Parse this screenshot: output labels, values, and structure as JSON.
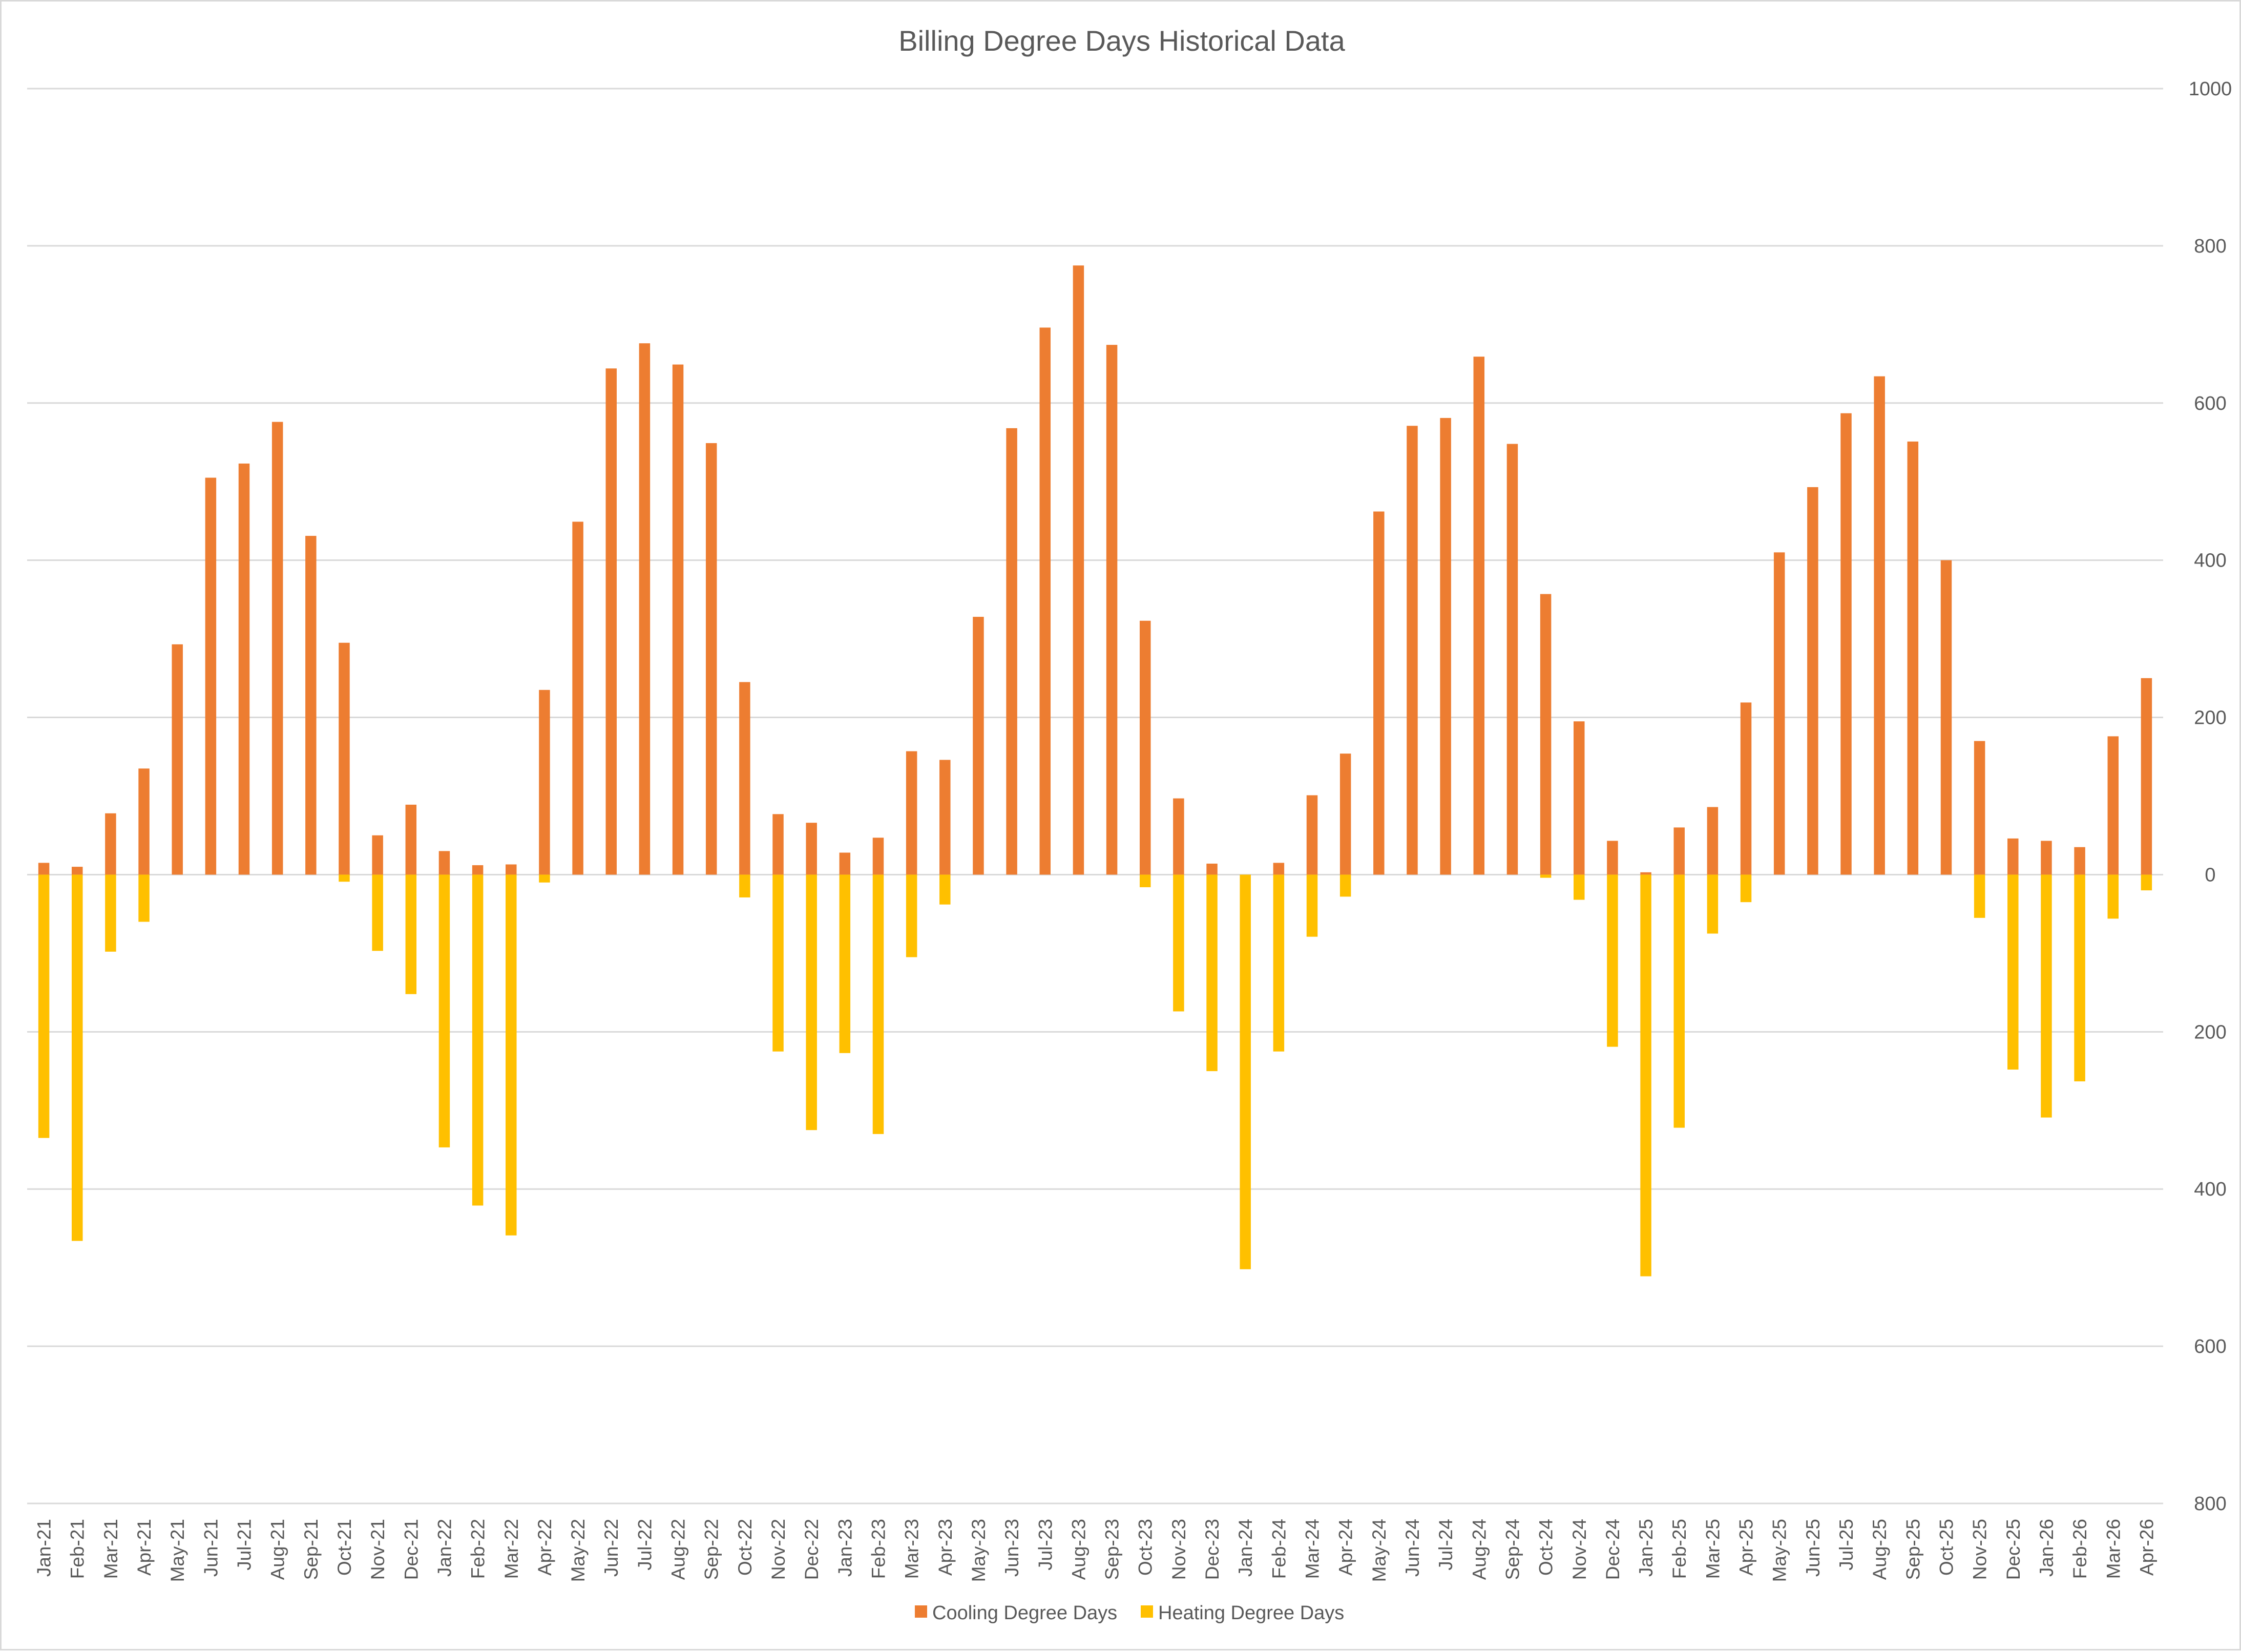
{
  "chart_data": {
    "type": "bar",
    "title": "Billing Degree Days Historical Data",
    "xlabel": "",
    "ylabel": "",
    "ylim": [
      -800,
      1000
    ],
    "y_ticks": [
      1000,
      800,
      600,
      400,
      200,
      0,
      -200,
      -400,
      -600,
      -800
    ],
    "y_tick_labels": [
      "1000",
      "800",
      "600",
      "400",
      "200",
      "0",
      "200",
      "400",
      "600",
      "800"
    ],
    "y_axis_position": "right",
    "grid": true,
    "legend_position": "bottom",
    "categories": [
      "Jan-21",
      "Feb-21",
      "Mar-21",
      "Apr-21",
      "May-21",
      "Jun-21",
      "Jul-21",
      "Aug-21",
      "Sep-21",
      "Oct-21",
      "Nov-21",
      "Dec-21",
      "Jan-22",
      "Feb-22",
      "Mar-22",
      "Apr-22",
      "May-22",
      "Jun-22",
      "Jul-22",
      "Aug-22",
      "Sep-22",
      "Oct-22",
      "Nov-22",
      "Dec-22",
      "Jan-23",
      "Feb-23",
      "Mar-23",
      "Apr-23",
      "May-23",
      "Jun-23",
      "Jul-23",
      "Aug-23",
      "Sep-23",
      "Oct-23",
      "Nov-23",
      "Dec-23",
      "Jan-24",
      "Feb-24",
      "Mar-24",
      "Apr-24",
      "May-24",
      "Jun-24",
      "Jul-24",
      "Aug-24",
      "Sep-24",
      "Oct-24",
      "Nov-24",
      "Dec-24",
      "Jan-25",
      "Feb-25",
      "Mar-25",
      "Apr-25",
      "May-25",
      "Jun-25",
      "Jul-25",
      "Aug-25",
      "Sep-25",
      "Oct-25",
      "Nov-25",
      "Dec-25",
      "Jan-26",
      "Feb-26",
      "Mar-26",
      "Apr-26"
    ],
    "series": [
      {
        "name": "Cooling Degree Days",
        "color": "#ed7d31",
        "values": [
          15,
          10,
          78,
          135,
          293,
          505,
          523,
          576,
          431,
          295,
          50,
          89,
          30,
          12,
          13,
          235,
          449,
          644,
          676,
          649,
          549,
          245,
          77,
          66,
          28,
          47,
          157,
          146,
          328,
          568,
          696,
          775,
          674,
          323,
          97,
          14,
          0,
          15,
          101,
          154,
          462,
          571,
          581,
          659,
          548,
          357,
          195,
          43,
          3,
          60,
          86,
          219,
          410,
          493,
          587,
          634,
          551,
          400,
          170,
          46,
          43,
          35,
          176,
          250
        ]
      },
      {
        "name": "Heating Degree Days",
        "color": "#ffc000",
        "values": [
          -335,
          -466,
          -98,
          -60,
          0,
          0,
          0,
          0,
          0,
          -9,
          -97,
          -152,
          -347,
          -421,
          -459,
          -10,
          0,
          0,
          0,
          0,
          0,
          -29,
          -225,
          -325,
          -227,
          -330,
          -105,
          -38,
          0,
          0,
          0,
          0,
          0,
          -16,
          -174,
          -250,
          -502,
          -225,
          -79,
          -28,
          0,
          0,
          0,
          0,
          0,
          -4,
          -32,
          -219,
          -511,
          -322,
          -75,
          -35,
          0,
          0,
          0,
          0,
          0,
          0,
          -55,
          -248,
          -309,
          -263,
          -56,
          -20
        ]
      }
    ]
  }
}
